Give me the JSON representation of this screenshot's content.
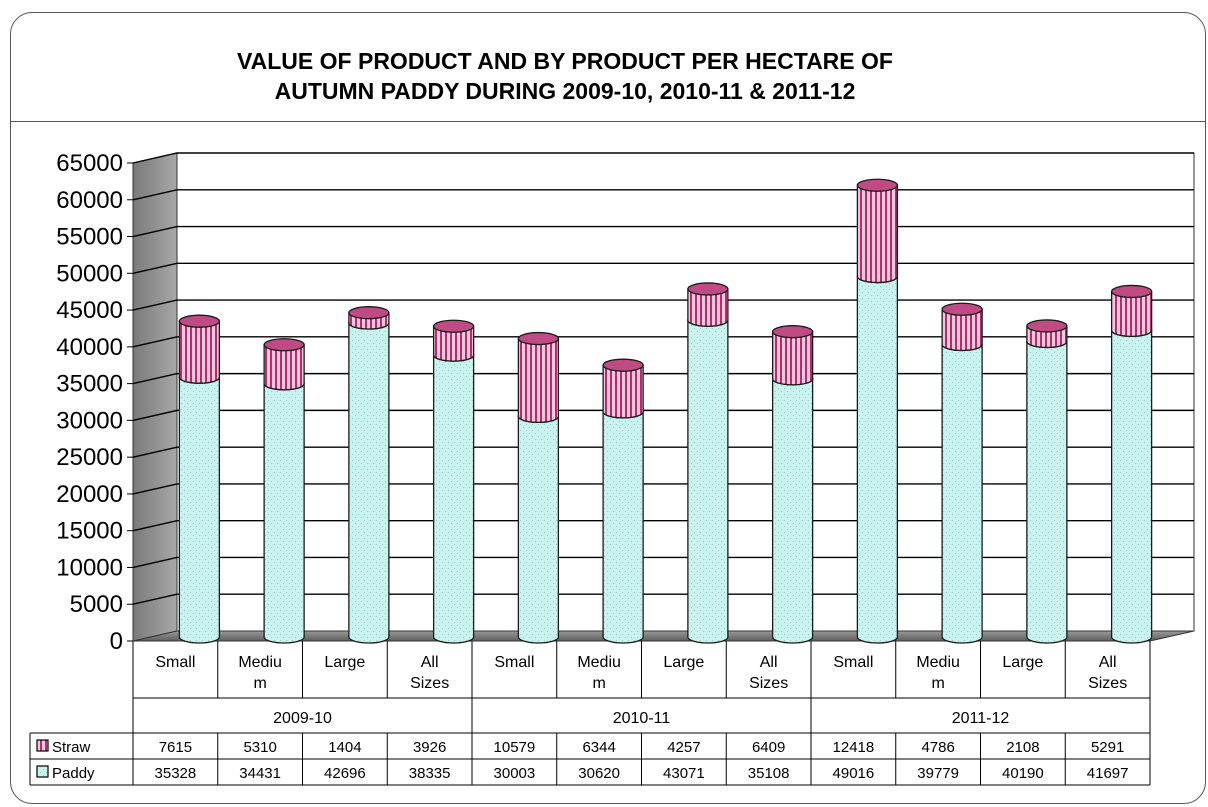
{
  "chart_data": {
    "type": "bar",
    "stacked": true,
    "title_lines": [
      "VALUE OF PRODUCT AND BY PRODUCT PER HECTARE OF",
      "AUTUMN PADDY DURING 2009-10,  2010-11 & 2011-12"
    ],
    "ylim": [
      0,
      65000
    ],
    "yticks": [
      "0",
      "5000",
      "10000",
      "15000",
      "20000",
      "25000",
      "30000",
      "35000",
      "40000",
      "45000",
      "50000",
      "55000",
      "60000",
      "65000"
    ],
    "categories": [
      {
        "group": "2009-10",
        "label": [
          "Small"
        ]
      },
      {
        "group": "2009-10",
        "label": [
          "Mediu",
          "m"
        ]
      },
      {
        "group": "2009-10",
        "label": [
          "Large"
        ]
      },
      {
        "group": "2009-10",
        "label": [
          "All",
          "Sizes"
        ]
      },
      {
        "group": "2010-11",
        "label": [
          "Small"
        ]
      },
      {
        "group": "2010-11",
        "label": [
          "Mediu",
          "m"
        ]
      },
      {
        "group": "2010-11",
        "label": [
          "Large"
        ]
      },
      {
        "group": "2010-11",
        "label": [
          "All",
          "Sizes"
        ]
      },
      {
        "group": "2011-12",
        "label": [
          "Small"
        ]
      },
      {
        "group": "2011-12",
        "label": [
          "Mediu",
          "m"
        ]
      },
      {
        "group": "2011-12",
        "label": [
          "Large"
        ]
      },
      {
        "group": "2011-12",
        "label": [
          "All",
          "Sizes"
        ]
      }
    ],
    "groups": [
      "2009-10",
      "2010-11",
      "2011-12"
    ],
    "series": [
      {
        "name": "Paddy",
        "color": "#c6f2ee",
        "values": [
          35328,
          34431,
          42696,
          38335,
          30003,
          30620,
          43071,
          35108,
          49016,
          39779,
          40190,
          41697
        ]
      },
      {
        "name": "Straw",
        "color": "#e8a0c8",
        "values": [
          7615,
          5310,
          1404,
          3926,
          10579,
          6344,
          4257,
          6409,
          12418,
          4786,
          2108,
          5291
        ]
      }
    ],
    "table_rows": [
      "Straw",
      "Paddy"
    ],
    "grid": true,
    "legend": "data-table"
  }
}
